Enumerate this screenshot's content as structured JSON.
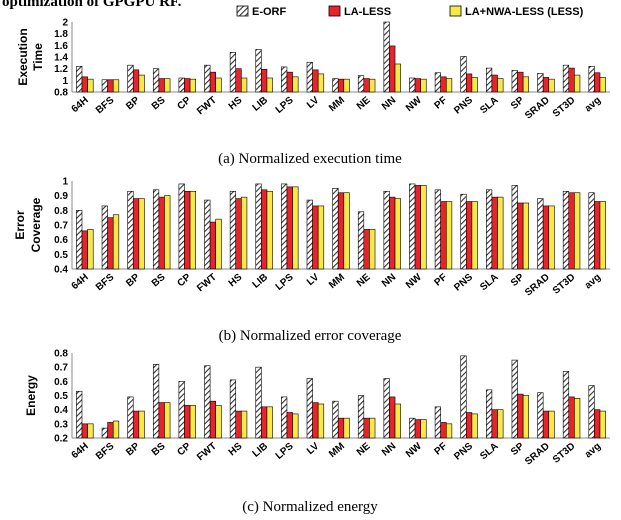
{
  "header_fragment": "optimization of GPGPU RF.",
  "legend": [
    "E-ORF",
    "LA-LESS",
    "LA+NWA-LESS (LESS)"
  ],
  "colors": {
    "e_orf_fill": "#ffffff",
    "e_orf_hatch": "#333333",
    "la_less": "#e8242a",
    "lanwa_less": "#f7ea48",
    "outline": "#000000"
  },
  "chart_data": [
    {
      "type": "bar",
      "caption": "(a)    Normalized execution time",
      "ylabel_lines": [
        "Execution",
        "Time"
      ],
      "yticks": [
        "0.8",
        "1",
        "1.2",
        "1.4",
        "1.6",
        "1.8",
        "2"
      ],
      "ylim": [
        0.8,
        2.0
      ],
      "categories": [
        "64H",
        "BFS",
        "BP",
        "BS",
        "CP",
        "FWT",
        "HS",
        "LIB",
        "LPS",
        "LV",
        "MM",
        "NE",
        "NN",
        "NW",
        "PF",
        "PNS",
        "SLA",
        "SP",
        "SRAD",
        "ST3D",
        "avg"
      ],
      "series": [
        {
          "name": "E-ORF",
          "values": [
            1.24,
            1.01,
            1.26,
            1.2,
            1.04,
            1.26,
            1.48,
            1.53,
            1.23,
            1.31,
            1.03,
            1.08,
            2.0,
            1.04,
            1.13,
            1.41,
            1.21,
            1.17,
            1.12,
            1.26,
            1.24
          ]
        },
        {
          "name": "LA-LESS",
          "values": [
            1.06,
            1.01,
            1.18,
            1.03,
            1.03,
            1.14,
            1.2,
            1.19,
            1.14,
            1.18,
            1.02,
            1.03,
            1.59,
            1.03,
            1.06,
            1.11,
            1.09,
            1.14,
            1.05,
            1.21,
            1.13
          ]
        },
        {
          "name": "LA+NWA-LESS (LESS)",
          "values": [
            1.02,
            1.01,
            1.09,
            1.03,
            1.02,
            1.04,
            1.04,
            1.04,
            1.06,
            1.11,
            1.02,
            1.02,
            1.28,
            1.02,
            1.03,
            1.05,
            1.03,
            1.06,
            1.02,
            1.09,
            1.05
          ]
        }
      ]
    },
    {
      "type": "bar",
      "caption": "(b)    Normalized error coverage",
      "ylabel_lines": [
        "Error",
        "Coverage"
      ],
      "yticks": [
        "0.4",
        "0.5",
        "0.6",
        "0.7",
        "0.8",
        "0.9",
        "1"
      ],
      "ylim": [
        0.4,
        1.0
      ],
      "categories": [
        "64H",
        "BFS",
        "BP",
        "BS",
        "CP",
        "FWT",
        "HS",
        "LIB",
        "LPS",
        "LV",
        "MM",
        "NE",
        "NN",
        "NW",
        "PF",
        "PNS",
        "SLA",
        "SP",
        "SRAD",
        "ST3D",
        "avg"
      ],
      "series": [
        {
          "name": "E-ORF",
          "values": [
            0.8,
            0.83,
            0.93,
            0.94,
            0.98,
            0.87,
            0.93,
            0.98,
            0.98,
            0.87,
            0.95,
            0.79,
            0.93,
            0.98,
            0.94,
            0.91,
            0.94,
            0.97,
            0.88,
            0.93,
            0.92
          ]
        },
        {
          "name": "LA-LESS",
          "values": [
            0.66,
            0.75,
            0.88,
            0.89,
            0.93,
            0.72,
            0.88,
            0.94,
            0.96,
            0.83,
            0.92,
            0.67,
            0.89,
            0.97,
            0.86,
            0.86,
            0.89,
            0.85,
            0.83,
            0.92,
            0.86
          ]
        },
        {
          "name": "LA+NWA-LESS (LESS)",
          "values": [
            0.67,
            0.77,
            0.88,
            0.9,
            0.93,
            0.74,
            0.89,
            0.93,
            0.96,
            0.83,
            0.92,
            0.67,
            0.88,
            0.97,
            0.86,
            0.86,
            0.89,
            0.85,
            0.83,
            0.92,
            0.86
          ]
        }
      ]
    },
    {
      "type": "bar",
      "caption": "(c)    Normalized energy",
      "ylabel_lines": [
        "Energy"
      ],
      "yticks": [
        "0.2",
        "0.3",
        "0.4",
        "0.5",
        "0.6",
        "0.7",
        "0.8"
      ],
      "ylim": [
        0.2,
        0.8
      ],
      "categories": [
        "64H",
        "BFS",
        "BP",
        "BS",
        "CP",
        "FWT",
        "HS",
        "LIB",
        "LPS",
        "LV",
        "MM",
        "NE",
        "NN",
        "NW",
        "PF",
        "PNS",
        "SLA",
        "SP",
        "SRAD",
        "ST3D",
        "avg"
      ],
      "series": [
        {
          "name": "E-ORF",
          "values": [
            0.53,
            0.27,
            0.49,
            0.72,
            0.6,
            0.71,
            0.61,
            0.7,
            0.49,
            0.62,
            0.46,
            0.5,
            0.62,
            0.34,
            0.42,
            0.78,
            0.54,
            0.75,
            0.52,
            0.67,
            0.57
          ]
        },
        {
          "name": "LA-LESS",
          "values": [
            0.3,
            0.31,
            0.39,
            0.45,
            0.43,
            0.46,
            0.39,
            0.42,
            0.38,
            0.45,
            0.34,
            0.34,
            0.49,
            0.33,
            0.31,
            0.38,
            0.4,
            0.51,
            0.39,
            0.49,
            0.4
          ]
        },
        {
          "name": "LA+NWA-LESS (LESS)",
          "values": [
            0.3,
            0.32,
            0.39,
            0.45,
            0.43,
            0.43,
            0.39,
            0.42,
            0.37,
            0.44,
            0.34,
            0.34,
            0.44,
            0.33,
            0.3,
            0.37,
            0.4,
            0.5,
            0.39,
            0.48,
            0.39
          ]
        }
      ]
    }
  ]
}
